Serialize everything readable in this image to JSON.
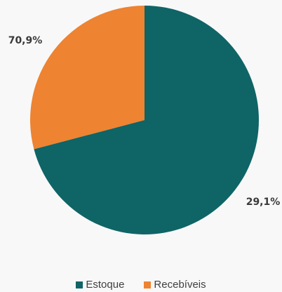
{
  "chart_data": {
    "type": "pie",
    "title": "",
    "slices": [
      {
        "label": "Estoque",
        "value": 70.9,
        "display": "70,9%",
        "color": "#0f6466"
      },
      {
        "label": "Recebíveis",
        "value": 29.1,
        "display": "29,1%",
        "color": "#ee8331"
      }
    ],
    "start_angle_deg": 0,
    "legend_position": "bottom"
  }
}
